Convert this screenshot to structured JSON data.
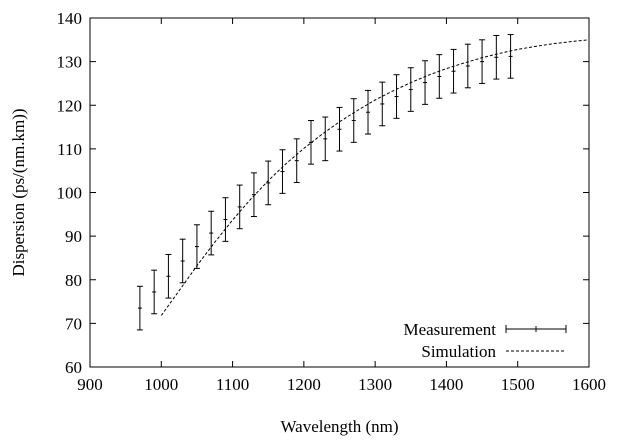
{
  "chart_data": {
    "type": "line",
    "xlabel": "Wavelength (nm)",
    "ylabel": "Dispersion (ps/(nm.km))",
    "xlim": [
      900,
      1600
    ],
    "ylim": [
      60,
      140
    ],
    "xticks": [
      "900",
      "1000",
      "1100",
      "1200",
      "1300",
      "1400",
      "1500",
      "1600"
    ],
    "yticks": [
      "60",
      "70",
      "80",
      "90",
      "100",
      "110",
      "120",
      "130",
      "140"
    ],
    "grid": false,
    "legend_position": "bottom-right",
    "series": [
      {
        "name": "Measurement",
        "style": "errorbar",
        "x": [
          970,
          990,
          1010,
          1030,
          1050,
          1070,
          1090,
          1110,
          1130,
          1150,
          1170,
          1190,
          1210,
          1230,
          1250,
          1270,
          1290,
          1310,
          1330,
          1350,
          1370,
          1390,
          1410,
          1430,
          1450,
          1470,
          1490
        ],
        "y": [
          73.5,
          77.2,
          80.8,
          84.3,
          87.6,
          90.7,
          93.8,
          96.7,
          99.5,
          102.2,
          104.8,
          107.3,
          111.5,
          112.3,
          114.5,
          116.5,
          118.4,
          120.3,
          122.0,
          123.6,
          125.2,
          126.6,
          127.8,
          129.0,
          130.0,
          131.0,
          131.2
        ],
        "error": [
          5,
          5,
          5,
          5,
          5,
          5,
          5,
          5,
          5,
          5,
          5,
          5,
          5,
          5,
          5,
          5,
          5,
          5,
          5,
          5,
          5,
          5,
          5,
          5,
          5,
          5,
          5
        ]
      },
      {
        "name": "Simulation",
        "style": "dashed",
        "x": [
          1000,
          1025,
          1050,
          1075,
          1100,
          1125,
          1150,
          1175,
          1200,
          1225,
          1250,
          1275,
          1300,
          1325,
          1350,
          1375,
          1400,
          1425,
          1450,
          1475,
          1500,
          1525,
          1550,
          1575,
          1600
        ],
        "y": [
          71.8,
          77.5,
          83.2,
          88.6,
          93.7,
          98.4,
          102.7,
          106.6,
          110.1,
          113.3,
          116.2,
          118.8,
          121.2,
          123.3,
          125.2,
          126.9,
          128.4,
          129.7,
          130.9,
          131.9,
          132.8,
          133.5,
          134.1,
          134.6,
          135.0
        ]
      }
    ]
  }
}
